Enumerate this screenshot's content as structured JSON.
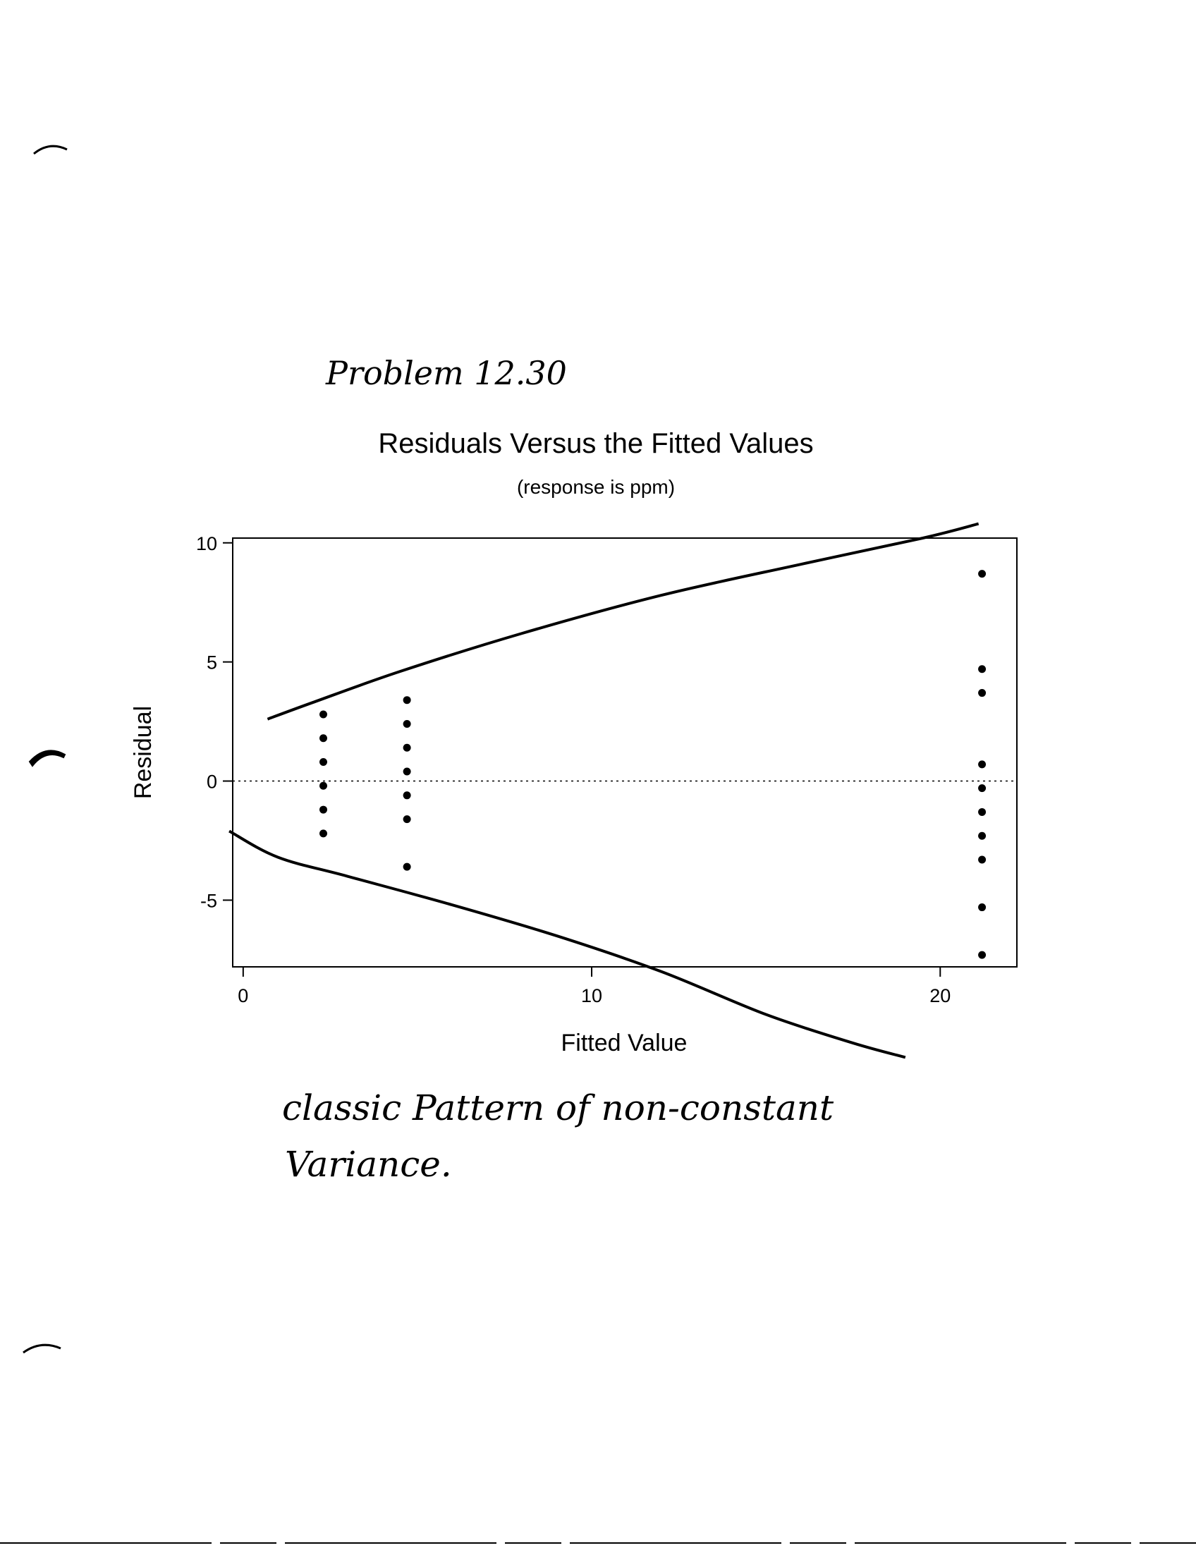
{
  "annotations": {
    "problem": "Problem 12.30",
    "comment_line1": "classic Pattern of non-constant",
    "comment_line2": "Variance."
  },
  "chart_data": {
    "type": "scatter",
    "title": "Residuals Versus the Fitted Values",
    "subtitle": "(response is ppm)",
    "xlabel": "Fitted Value",
    "ylabel": "Residual",
    "xlim": [
      -0.3,
      22.2
    ],
    "ylim": [
      -7.8,
      10.2
    ],
    "x_ticks": [
      0,
      10,
      20
    ],
    "y_ticks": [
      -5,
      0,
      5,
      10
    ],
    "grid": false,
    "reference_line": {
      "y": 0,
      "style": "dotted"
    },
    "points": [
      {
        "x": 2.3,
        "y": 2.8
      },
      {
        "x": 2.3,
        "y": 1.8
      },
      {
        "x": 2.3,
        "y": 0.8
      },
      {
        "x": 2.3,
        "y": -0.2
      },
      {
        "x": 2.3,
        "y": -1.2
      },
      {
        "x": 2.3,
        "y": -2.2
      },
      {
        "x": 4.7,
        "y": 3.4
      },
      {
        "x": 4.7,
        "y": 2.4
      },
      {
        "x": 4.7,
        "y": 1.4
      },
      {
        "x": 4.7,
        "y": 0.4
      },
      {
        "x": 4.7,
        "y": -0.6
      },
      {
        "x": 4.7,
        "y": -1.6
      },
      {
        "x": 4.7,
        "y": -3.6
      },
      {
        "x": 21.2,
        "y": 8.7
      },
      {
        "x": 21.2,
        "y": 4.7
      },
      {
        "x": 21.2,
        "y": 3.7
      },
      {
        "x": 21.2,
        "y": 0.7
      },
      {
        "x": 21.2,
        "y": -0.3
      },
      {
        "x": 21.2,
        "y": -1.3
      },
      {
        "x": 21.2,
        "y": -2.3
      },
      {
        "x": 21.2,
        "y": -3.3
      },
      {
        "x": 21.2,
        "y": -5.3
      },
      {
        "x": 21.2,
        "y": -7.3
      }
    ],
    "hand_drawn_envelope": {
      "upper": [
        [
          0.7,
          2.6
        ],
        [
          2.0,
          3.3
        ],
        [
          4.5,
          4.6
        ],
        [
          8.0,
          6.2
        ],
        [
          12.0,
          7.8
        ],
        [
          16.0,
          9.1
        ],
        [
          19.5,
          10.2
        ],
        [
          21.1,
          10.8
        ]
      ],
      "lower": [
        [
          -0.4,
          -2.1
        ],
        [
          1.0,
          -3.2
        ],
        [
          3.0,
          -4.0
        ],
        [
          6.0,
          -5.2
        ],
        [
          9.0,
          -6.5
        ],
        [
          12.0,
          -8.0
        ],
        [
          15.0,
          -9.8
        ],
        [
          17.5,
          -11.0
        ],
        [
          19.0,
          -11.6
        ]
      ]
    }
  }
}
